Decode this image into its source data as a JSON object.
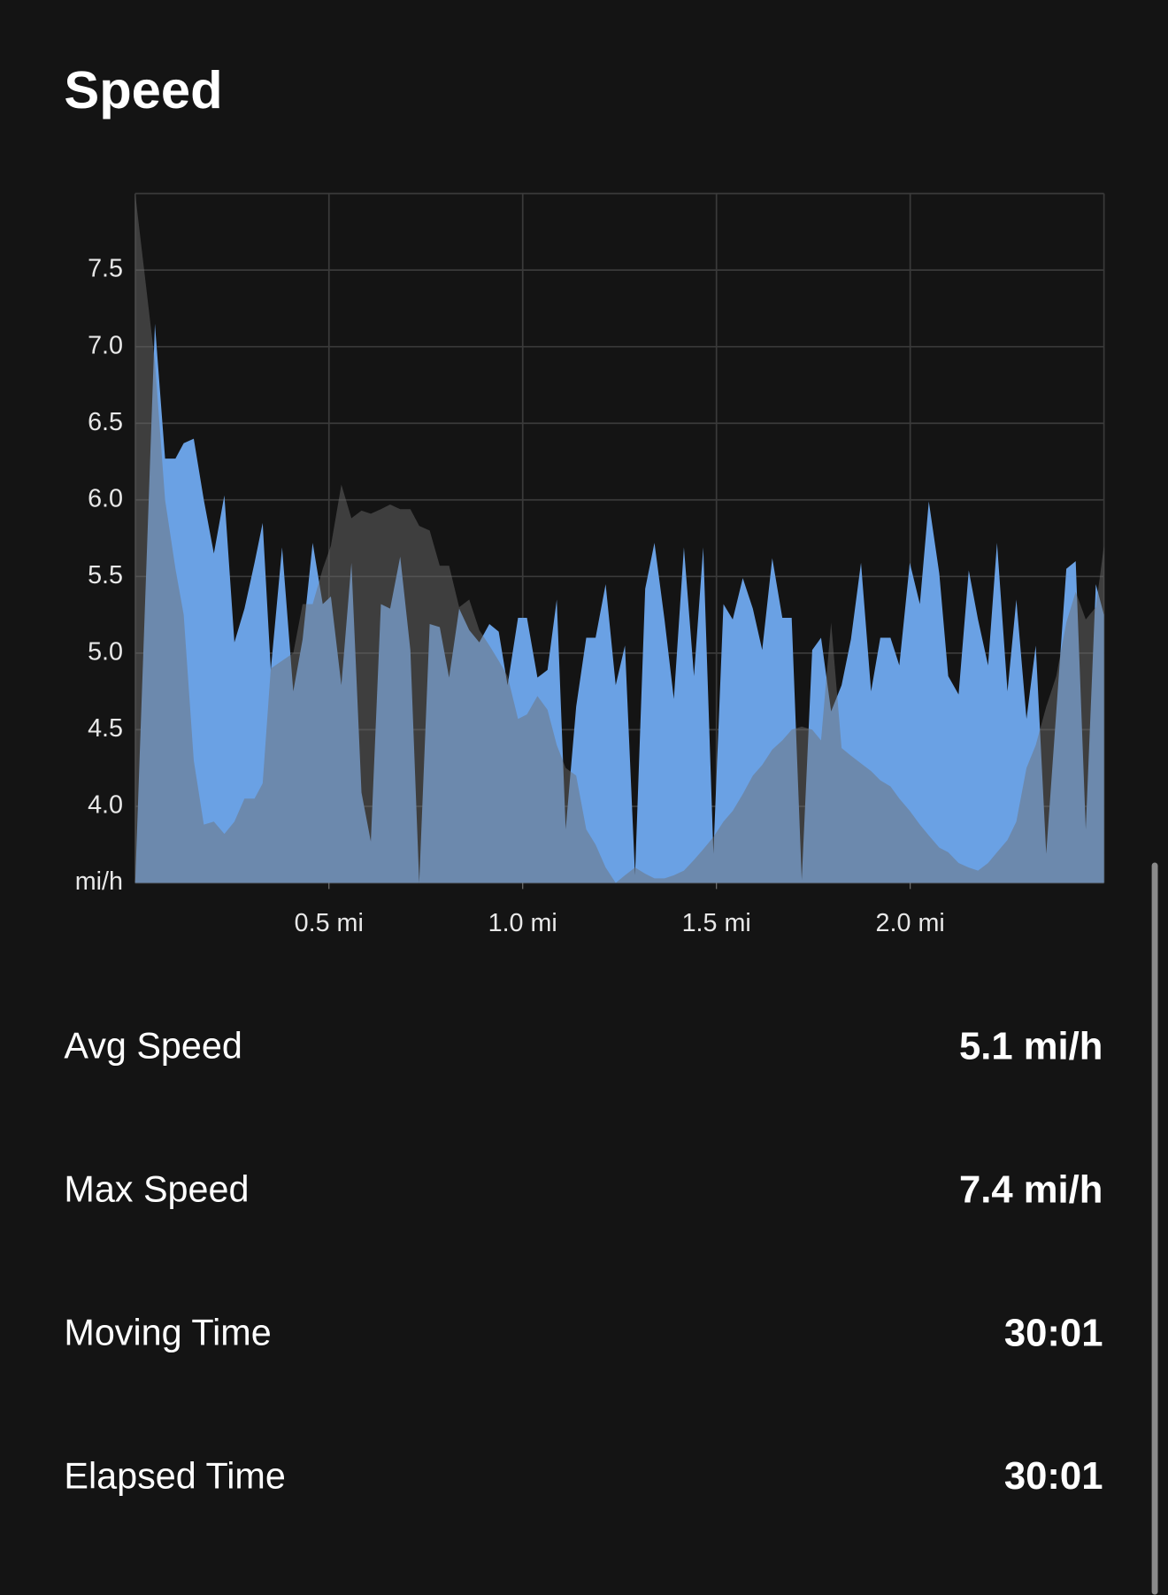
{
  "chart_data": {
    "type": "area",
    "title": "Speed",
    "ylabel": "mi/h",
    "x": [
      0,
      0.051,
      0.077,
      0.104,
      0.125,
      0.151,
      0.177,
      0.203,
      0.23,
      0.256,
      0.282,
      0.308,
      0.329,
      0.35,
      0.379,
      0.408,
      0.432,
      0.458,
      0.484,
      0.505,
      0.532,
      0.558,
      0.584,
      0.608,
      0.634,
      0.658,
      0.684,
      0.71,
      0.733,
      0.76,
      0.786,
      0.81,
      0.836,
      0.862,
      0.888,
      0.914,
      0.938,
      0.961,
      0.988,
      1.011,
      1.038,
      1.064,
      1.088,
      1.111,
      1.138,
      1.164,
      1.188,
      1.214,
      1.24,
      1.264,
      1.29,
      1.316,
      1.34,
      1.366,
      1.39,
      1.416,
      1.442,
      1.466,
      1.492,
      1.518,
      1.542,
      1.568,
      1.594,
      1.618,
      1.644,
      1.67,
      1.694,
      1.72,
      1.747,
      1.77,
      1.796,
      1.823,
      1.847,
      1.873,
      1.899,
      1.923,
      1.949,
      1.972,
      1.999,
      2.025,
      2.048,
      2.075,
      2.098,
      2.125,
      2.151,
      2.175,
      2.201,
      2.224,
      2.251,
      2.274,
      2.3,
      2.324,
      2.351,
      2.377,
      2.403,
      2.427,
      2.453,
      2.479,
      2.5
    ],
    "series": [
      {
        "color": "#6aa1e4",
        "values": [
          3.5,
          7.15,
          6.27,
          6.27,
          6.37,
          6.4,
          6.0,
          5.65,
          6.03,
          5.07,
          5.29,
          5.59,
          5.85,
          4.89,
          5.69,
          4.75,
          5.09,
          5.72,
          5.32,
          5.37,
          4.79,
          5.59,
          4.09,
          3.77,
          5.32,
          5.29,
          5.63,
          5.02,
          3.5,
          5.19,
          5.17,
          4.84,
          5.29,
          5.15,
          5.07,
          5.19,
          5.14,
          4.79,
          5.23,
          5.23,
          4.84,
          4.89,
          5.35,
          3.85,
          4.65,
          5.1,
          5.1,
          5.45,
          4.79,
          5.05,
          3.55,
          5.42,
          5.72,
          5.22,
          4.7,
          5.69,
          4.85,
          5.69,
          3.69,
          5.32,
          5.22,
          5.49,
          5.29,
          5.02,
          5.62,
          5.23,
          5.23,
          3.52,
          5.02,
          5.1,
          4.62,
          4.79,
          5.09,
          5.59,
          4.75,
          5.1,
          5.1,
          4.92,
          5.59,
          5.32,
          5.99,
          5.52,
          4.85,
          4.73,
          5.54,
          5.22,
          4.92,
          5.72,
          4.75,
          5.35,
          4.57,
          5.05,
          3.69,
          4.62,
          5.55,
          5.6,
          3.85,
          5.45,
          5.25
        ]
      },
      {
        "color": "#6e6e6e",
        "opacity": 0.47,
        "values": [
          8.0,
          6.9,
          6.0,
          5.55,
          5.25,
          4.3,
          3.88,
          3.9,
          3.82,
          3.9,
          4.05,
          4.05,
          4.15,
          4.9,
          4.95,
          5.0,
          5.32,
          5.32,
          5.55,
          5.7,
          6.1,
          5.88,
          5.93,
          5.91,
          5.94,
          5.97,
          5.94,
          5.94,
          5.83,
          5.8,
          5.57,
          5.57,
          5.3,
          5.35,
          5.15,
          5.05,
          4.95,
          4.85,
          4.57,
          4.6,
          4.72,
          4.63,
          4.4,
          4.25,
          4.2,
          3.85,
          3.75,
          3.6,
          3.5,
          3.55,
          3.6,
          3.56,
          3.53,
          3.53,
          3.55,
          3.58,
          3.65,
          3.72,
          3.8,
          3.9,
          3.97,
          4.08,
          4.2,
          4.27,
          4.37,
          4.43,
          4.5,
          4.52,
          4.5,
          4.43,
          5.2,
          4.38,
          4.33,
          4.28,
          4.23,
          4.17,
          4.13,
          4.05,
          3.97,
          3.88,
          3.81,
          3.73,
          3.7,
          3.63,
          3.6,
          3.58,
          3.63,
          3.7,
          3.78,
          3.9,
          4.25,
          4.4,
          4.65,
          4.85,
          5.2,
          5.4,
          5.22,
          5.3,
          5.7
        ]
      }
    ],
    "xlim": [
      0,
      2.5
    ],
    "ylim": [
      3.5,
      8.0
    ],
    "xticks": [
      {
        "value": 0.5,
        "label": "0.5 mi"
      },
      {
        "value": 1.0,
        "label": "1.0 mi"
      },
      {
        "value": 1.5,
        "label": "1.5 mi"
      },
      {
        "value": 2.0,
        "label": "2.0 mi"
      }
    ],
    "yticks": [
      {
        "value": 4,
        "label": "4.0"
      },
      4.5,
      {
        "value": 5,
        "label": "5.0"
      },
      5.5,
      {
        "value": 6,
        "label": "6.0"
      },
      6.5,
      {
        "value": 7,
        "label": "7.0"
      },
      7.5
    ],
    "grid": true
  },
  "stats": [
    {
      "label": "Avg Speed",
      "value": "5.1 mi/h"
    },
    {
      "label": "Max Speed",
      "value": "7.4 mi/h"
    },
    {
      "label": "Moving Time",
      "value": "30:01"
    },
    {
      "label": "Elapsed Time",
      "value": "30:01"
    }
  ]
}
